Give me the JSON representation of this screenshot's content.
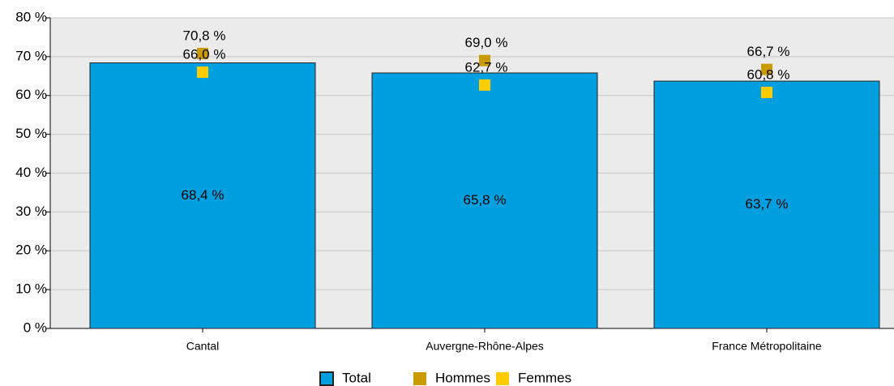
{
  "chart_data": {
    "type": "bar",
    "categories": [
      "Cantal",
      "Auvergne-Rhône-Alpes",
      "France Métropolitaine"
    ],
    "series": [
      {
        "name": "Total",
        "color": "#009fe0",
        "values": [
          68.4,
          65.8,
          63.7
        ],
        "value_labels": [
          "68,4 %",
          "65,8 %",
          "63,7 %"
        ],
        "mark": "bar"
      },
      {
        "name": "Hommes",
        "color": "#c99b00",
        "values": [
          70.8,
          69.0,
          66.7
        ],
        "value_labels": [
          "70,8 %",
          "69,0 %",
          "66,7 %"
        ],
        "mark": "square"
      },
      {
        "name": "Femmes",
        "color": "#ffcc00",
        "values": [
          66.0,
          62.7,
          60.8
        ],
        "value_labels": [
          "66,0 %",
          "62,7 %",
          "60,8 %"
        ],
        "mark": "square"
      }
    ],
    "ylim": [
      0,
      80
    ],
    "yticks": [
      {
        "value": 0,
        "label": "0 %"
      },
      {
        "value": 10,
        "label": "10 %"
      },
      {
        "value": 20,
        "label": "20 %"
      },
      {
        "value": 30,
        "label": "30 %"
      },
      {
        "value": 40,
        "label": "40 %"
      },
      {
        "value": 50,
        "label": "50 %"
      },
      {
        "value": 60,
        "label": "60 %"
      },
      {
        "value": 70,
        "label": "70 %"
      },
      {
        "value": 80,
        "label": "80 %"
      }
    ],
    "grid": true
  }
}
